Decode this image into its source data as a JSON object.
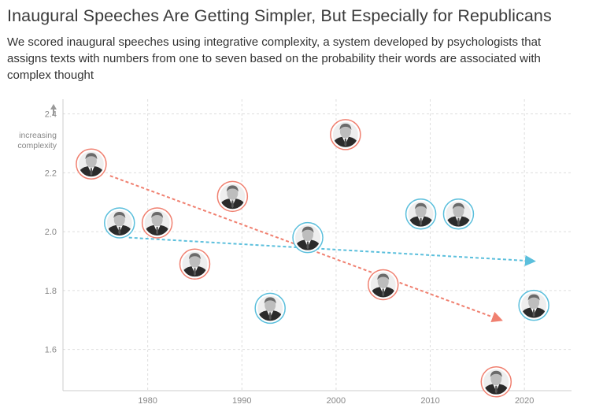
{
  "header": {
    "title": "Inaugural Speeches Are Getting Simpler, But Especially for Republicans",
    "subtitle": "We scored inaugural speeches using integrative complexity, a system developed by psychologists that assigns texts with numbers from one to seven based on the probability their words are associated with complex thought"
  },
  "colors": {
    "republican": "#f08070",
    "democrat": "#5bbfdc",
    "grid": "#dddddd",
    "axis": "#cccccc",
    "text_muted": "#888888"
  },
  "chart_data": {
    "type": "scatter",
    "title": "Inaugural Speeches Are Getting Simpler, But Especially for Republicans",
    "ylabel": "increasing complexity",
    "xlabel": "",
    "xlim": [
      1971,
      2025
    ],
    "ylim": [
      1.46,
      2.45
    ],
    "x_ticks": [
      1980,
      1990,
      2000,
      2010,
      2020
    ],
    "y_ticks": [
      1.6,
      1.8,
      2.0,
      2.2,
      2.4
    ],
    "grid": true,
    "marker": "portrait-circle",
    "series": [
      {
        "party": "republican",
        "points": [
          {
            "x": 1974,
            "y": 2.23
          },
          {
            "x": 1981,
            "y": 2.03
          },
          {
            "x": 1985,
            "y": 1.89
          },
          {
            "x": 1989,
            "y": 2.12
          },
          {
            "x": 2001,
            "y": 2.33
          },
          {
            "x": 2005,
            "y": 1.82
          },
          {
            "x": 2017,
            "y": 1.49
          }
        ],
        "trend": {
          "x": [
            1976,
            2017.5
          ],
          "y": [
            2.19,
            1.7
          ]
        }
      },
      {
        "party": "democrat",
        "points": [
          {
            "x": 1977,
            "y": 2.03
          },
          {
            "x": 1993,
            "y": 1.74
          },
          {
            "x": 1997,
            "y": 1.98
          },
          {
            "x": 2009,
            "y": 2.06
          },
          {
            "x": 2013,
            "y": 2.06
          },
          {
            "x": 2021,
            "y": 1.75
          }
        ],
        "trend": {
          "x": [
            1978,
            2021
          ],
          "y": [
            1.98,
            1.9
          ]
        }
      }
    ]
  }
}
